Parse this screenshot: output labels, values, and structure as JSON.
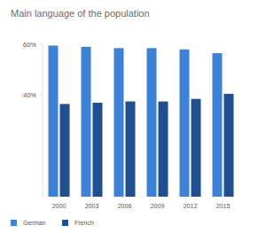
{
  "chart_data": {
    "type": "bar",
    "title": "Main language of the population",
    "categories": [
      "2000",
      "2003",
      "2006",
      "2009",
      "2012",
      "2015"
    ],
    "series": [
      {
        "name": "German",
        "color": "#3d82d6",
        "values": [
          59.5,
          59,
          58.5,
          58.5,
          58,
          56.5
        ]
      },
      {
        "name": "French",
        "color": "#1f4f8f",
        "values": [
          36.5,
          37,
          37.5,
          37.5,
          38.5,
          40.5
        ]
      }
    ],
    "ylim": [
      0,
      60
    ],
    "yticks": [
      {
        "value": 40,
        "label": "40%"
      },
      {
        "value": 60,
        "label": "60%"
      }
    ],
    "grid": false,
    "legend": "bottom-left"
  }
}
